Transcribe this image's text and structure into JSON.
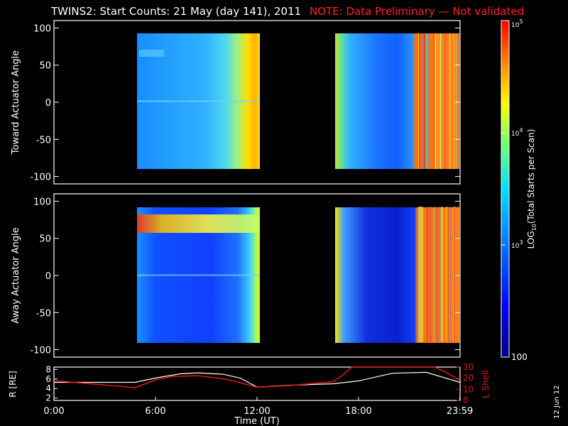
{
  "title": {
    "main": "TWINS2: Start Counts: 21 May (day 141), 2011",
    "note": "NOTE: Data Preliminary — Not validated"
  },
  "side_date": "12 Jun 12",
  "colors": {
    "background": "#000000",
    "axes": "#ffffff",
    "note": "#ff2020",
    "r_line": "#ffffff",
    "l_line": "#e01818"
  },
  "chart_data": [
    {
      "type": "heatmap",
      "ylabel": "Toward Actuator Angle",
      "ylim": [
        -110,
        110
      ],
      "y_ticks": [
        "100",
        "50",
        "0",
        "-50",
        "-100"
      ],
      "x_range_hours": [
        0,
        24
      ],
      "data_blocks": [
        {
          "start": "4:50",
          "end": "12:10",
          "angle_range": [
            -90,
            90
          ],
          "dominant_level": "~10^3 (blue-cyan)",
          "late_level": "~10^4 (yellow)"
        },
        {
          "start": "16:25",
          "end": "23:59",
          "angle_range": [
            -90,
            90
          ],
          "dominant_level": "~10^3 (blue)",
          "late_level": "~10^4.5 (orange)"
        }
      ]
    },
    {
      "type": "heatmap",
      "ylabel": "Away Actuator Angle",
      "ylim": [
        -110,
        110
      ],
      "y_ticks": [
        "100",
        "50",
        "0",
        "-50",
        "-100"
      ],
      "x_range_hours": [
        0,
        24
      ],
      "data_blocks": [
        {
          "start": "4:50",
          "end": "12:10",
          "angle_range": [
            -90,
            90
          ],
          "dominant_level": "~10^2.7 (blue)",
          "peak_band": "70-80 deg (yellow/red)"
        },
        {
          "start": "16:25",
          "end": "23:59",
          "angle_range": [
            -90,
            90
          ],
          "dominant_level": "~10^2.5 (blue)",
          "late_level": "~10^4.5 (orange)"
        }
      ]
    },
    {
      "type": "line",
      "ylabel_left": "R [RE]",
      "ylabel_right": "L Shell",
      "left_ticks": [
        "8",
        "6",
        "4",
        "2"
      ],
      "right_ticks": [
        "30",
        "20",
        "10",
        "0"
      ],
      "ylim_left": [
        1.5,
        8.5
      ],
      "ylim_right": [
        0,
        30
      ],
      "x_ticks": [
        "0:00",
        "6:00",
        "12:00",
        "18:00",
        "23:59"
      ],
      "xlabel": "Time (UT)",
      "series": [
        {
          "name": "R",
          "axis": "left",
          "x": [
            0,
            2,
            4.8,
            6,
            7.5,
            8.5,
            10,
            11,
            12,
            14,
            16.5,
            18,
            20,
            22,
            23.99
          ],
          "y": [
            5.3,
            5.3,
            5.3,
            6.2,
            7.1,
            7.3,
            7.0,
            6.2,
            4.3,
            4.7,
            5.0,
            5.6,
            7.2,
            7.4,
            5.3
          ]
        },
        {
          "name": "L Shell",
          "axis": "right",
          "x": [
            0,
            4.8,
            6,
            7,
            8.5,
            10,
            11,
            12,
            14,
            16.5,
            17,
            17.6,
            22.5,
            23.2,
            23.99
          ],
          "y": [
            17.8,
            11.5,
            18.5,
            21.5,
            22.3,
            19.5,
            16,
            11.8,
            13.5,
            17,
            22,
            30,
            30,
            25,
            18
          ]
        }
      ]
    }
  ],
  "colorbar": {
    "label": "LOG10(Total Starts per Scan)",
    "label_pre": "LOG",
    "label_sub": "10",
    "label_post": "(Total Starts per Scan)",
    "ticks": [
      "10^5",
      "10^4",
      "10^3",
      "100"
    ],
    "range_log10": [
      2,
      5
    ]
  }
}
